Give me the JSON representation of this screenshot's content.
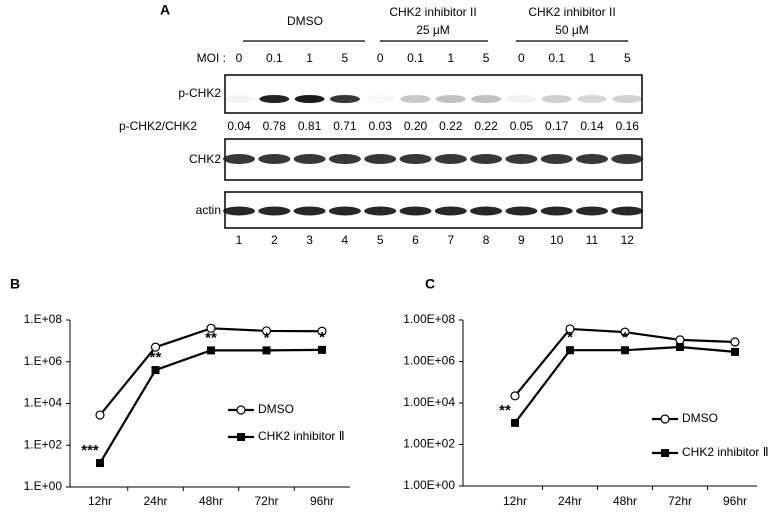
{
  "panel_a": {
    "label": "A",
    "groups": [
      {
        "lines": [
          "DMSO"
        ]
      },
      {
        "lines": [
          "CHK2 inhibitor II",
          "25 μM"
        ]
      },
      {
        "lines": [
          "CHK2 inhibitor II",
          "50 μM"
        ]
      }
    ],
    "moi_label": "MOI :",
    "moi": [
      "0",
      "0.1",
      "1",
      "5",
      "0",
      "0.1",
      "1",
      "5",
      "0",
      "0.1",
      "1",
      "5"
    ],
    "blot_labels": [
      "p-CHK2",
      "CHK2",
      "actin"
    ],
    "ratio_label": "p-CHK2/CHK2",
    "ratios": [
      "0.04",
      "0.78",
      "0.81",
      "0.71",
      "0.03",
      "0.20",
      "0.22",
      "0.22",
      "0.05",
      "0.17",
      "0.14",
      "0.16"
    ],
    "lanes": [
      "1",
      "2",
      "3",
      "4",
      "5",
      "6",
      "7",
      "8",
      "9",
      "10",
      "11",
      "12"
    ]
  },
  "chart_data": [
    {
      "type": "line",
      "panel": "B",
      "log_scale": true,
      "legend": "right",
      "categories": [
        "12hr",
        "24hr",
        "48hr",
        "72hr",
        "96hr"
      ],
      "series": [
        {
          "name": "DMSO",
          "color": "#000000",
          "marker": "open-circle",
          "values": [
            2800,
            5000000,
            40000000,
            30000000,
            29000000
          ]
        },
        {
          "name": "CHK2 inhibitor Ⅱ",
          "color": "#000000",
          "marker": "filled-square",
          "values": [
            14,
            400000,
            3500000,
            3500000,
            3700000
          ],
          "annotations": [
            "***",
            "**",
            "**",
            "*",
            "*"
          ]
        }
      ],
      "ylim": [
        1,
        100000000
      ],
      "yticks": [
        {
          "value": 1,
          "label": "1.E+00"
        },
        {
          "value": 100,
          "label": "1.E+02"
        },
        {
          "value": 10000,
          "label": "1.E+04"
        },
        {
          "value": 1000000,
          "label": "1.E+06"
        },
        {
          "value": 100000000,
          "label": "1.E+08"
        }
      ]
    },
    {
      "type": "line",
      "panel": "C",
      "log_scale": true,
      "legend": "right",
      "categories": [
        "12hr",
        "24hr",
        "48hr",
        "72hr",
        "96hr"
      ],
      "series": [
        {
          "name": "DMSO",
          "color": "#000000",
          "marker": "open-circle",
          "values": [
            22000,
            37000000,
            26000000,
            11000000,
            8700000
          ]
        },
        {
          "name": "CHK2 inhibitor Ⅱ",
          "color": "#000000",
          "marker": "filled-square",
          "values": [
            1100,
            3500000,
            3500000,
            5000000,
            2900000
          ],
          "annotations": [
            "**",
            "*",
            "*",
            null,
            null
          ]
        }
      ],
      "ylim": [
        1,
        100000000
      ],
      "yticks": [
        {
          "value": 1,
          "label": "1.00E+00"
        },
        {
          "value": 100,
          "label": "1.00E+02"
        },
        {
          "value": 10000,
          "label": "1.00E+04"
        },
        {
          "value": 1000000,
          "label": "1.00E+06"
        },
        {
          "value": 100000000,
          "label": "1.00E+08"
        }
      ]
    }
  ]
}
